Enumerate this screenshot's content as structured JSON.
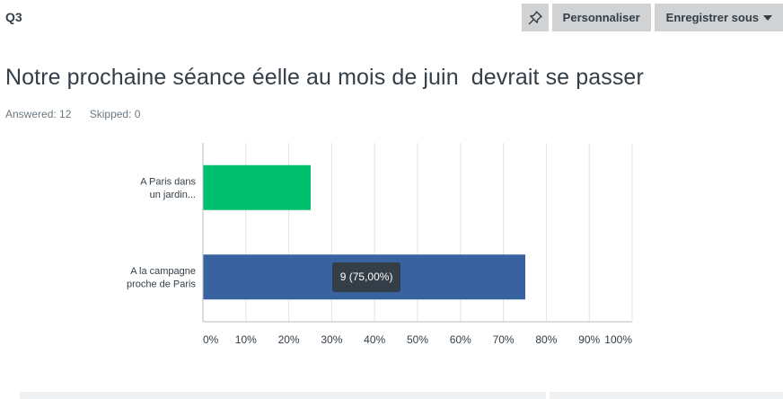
{
  "header": {
    "question_label": "Q3",
    "pin_icon": "pin-icon",
    "customize_label": "Personnaliser",
    "save_as_label": "Enregistrer sous"
  },
  "question": {
    "title": "Notre prochaine séance éelle au mois de juin  devrait se passer",
    "answered": "Answered: 12",
    "skipped": "Skipped: 0"
  },
  "colors": {
    "accent_green": "#00bf6f",
    "accent_blue": "#3862a0",
    "grid": "#e2e3e4"
  },
  "chart_data": {
    "type": "bar",
    "orientation": "horizontal",
    "categories": [
      [
        "A Paris dans",
        "un jardin..."
      ],
      [
        "A la campagne",
        "proche de Paris"
      ]
    ],
    "values": [
      25,
      75
    ],
    "xlim": [
      0,
      100
    ],
    "x_ticks": [
      "0%",
      "10%",
      "20%",
      "30%",
      "40%",
      "50%",
      "60%",
      "70%",
      "80%",
      "90%",
      "100%"
    ],
    "grid": true,
    "bar_colors": [
      "#00bf6f",
      "#3862a0"
    ],
    "tooltip": {
      "category_index": 1,
      "text": "9 (75,00%)"
    }
  }
}
